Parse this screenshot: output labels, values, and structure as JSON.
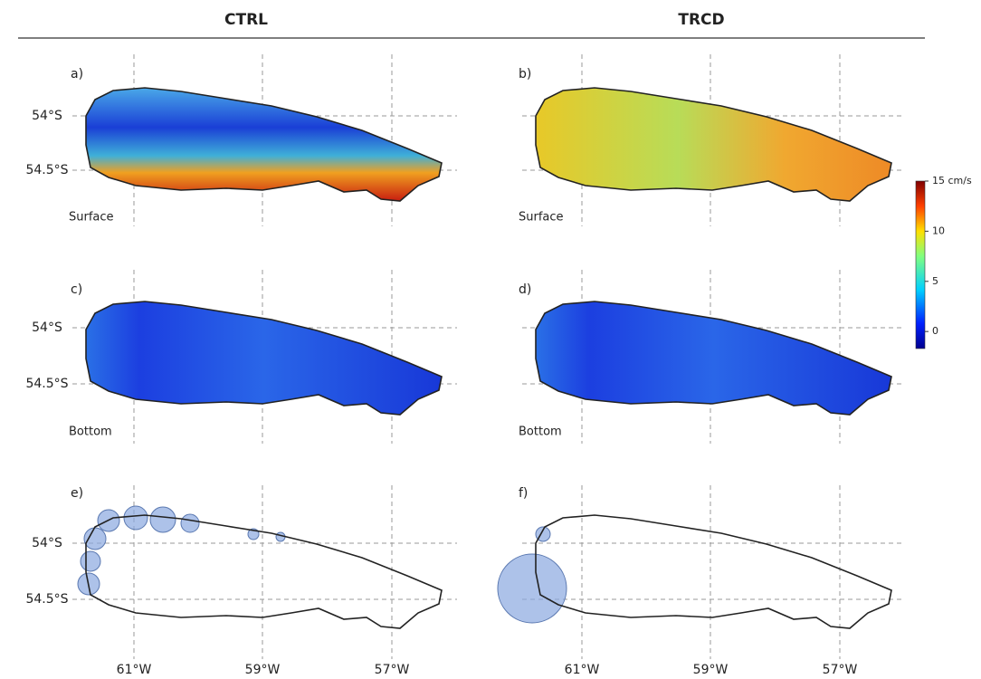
{
  "columns": [
    "CTRL",
    "TRCD"
  ],
  "panels": [
    {
      "label": "a)",
      "layer": "Surface"
    },
    {
      "label": "b)",
      "layer": "Surface"
    },
    {
      "label": "c)",
      "layer": "Bottom"
    },
    {
      "label": "d)",
      "layer": "Bottom"
    },
    {
      "label": "e)"
    },
    {
      "label": "f)"
    }
  ],
  "latitude_labels": [
    "54°S",
    "54.5°S"
  ],
  "longitude_labels": [
    "61°W",
    "59°W",
    "57°W"
  ],
  "colorbar": {
    "range": [
      -1.7,
      15
    ],
    "ticks": [
      {
        "value": 15,
        "label": "15 cm/s"
      },
      10,
      5,
      0
    ]
  }
}
